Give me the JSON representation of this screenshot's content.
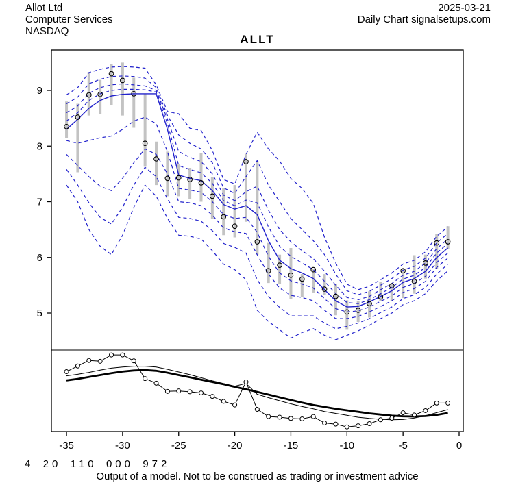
{
  "header": {
    "company": "Allot Ltd",
    "sector": "Computer Services",
    "exchange": "NASDAQ",
    "date": "2025-03-21",
    "source": "Daily Chart signalsetups.com",
    "title": "ALLT"
  },
  "footer": {
    "model_code": "4_20_110_000_972",
    "disclaimer": "Output of a model. Not to be construed as trading or investment advice"
  },
  "chart_data": {
    "type": "line",
    "title": "ALLT",
    "xlabel": "",
    "ylabel": "",
    "x": [
      -35,
      -34,
      -33,
      -32,
      -31,
      -30,
      -29,
      -28,
      -27,
      -26,
      -25,
      -24,
      -23,
      -22,
      -21,
      -20,
      -19,
      -18,
      -17,
      -16,
      -15,
      -14,
      -13,
      -12,
      -11,
      -10,
      -9,
      -8,
      -7,
      -6,
      -5,
      -4,
      -3,
      -2,
      -1
    ],
    "x_ticks": [
      -35,
      -30,
      -25,
      -20,
      -15,
      -10,
      -5,
      0
    ],
    "y_ticks": [
      5,
      6,
      7,
      8,
      9
    ],
    "ylim": [
      4.35,
      9.72
    ],
    "xlim": [
      -36.3,
      0.4
    ],
    "grid": false,
    "legend": "none",
    "series": {
      "close": [
        8.35,
        8.52,
        8.92,
        8.93,
        9.3,
        9.18,
        8.94,
        8.05,
        7.77,
        7.42,
        7.43,
        7.4,
        7.34,
        7.1,
        6.73,
        6.56,
        7.72,
        6.28,
        5.76,
        5.86,
        5.68,
        5.61,
        5.78,
        5.43,
        5.3,
        5.02,
        5.05,
        5.17,
        5.29,
        5.49,
        5.76,
        5.57,
        5.9,
        6.26,
        6.28
      ],
      "high": [
        8.8,
        8.76,
        9.33,
        9.19,
        9.48,
        9.5,
        9.23,
        8.94,
        8.08,
        7.9,
        7.67,
        7.61,
        7.88,
        7.45,
        7.24,
        7.3,
        7.86,
        7.73,
        6.26,
        6.05,
        6.17,
        5.7,
        5.8,
        5.7,
        5.52,
        5.23,
        5.21,
        5.39,
        5.56,
        5.52,
        5.8,
        6.04,
        6.05,
        6.42,
        6.56
      ],
      "low": [
        8.14,
        7.53,
        8.55,
        8.58,
        8.74,
        8.55,
        8.33,
        7.63,
        7.3,
        7.1,
        7.1,
        7.05,
        7.0,
        6.69,
        6.4,
        6.36,
        6.64,
        6.05,
        5.54,
        5.52,
        5.25,
        5.29,
        5.37,
        5.32,
        4.96,
        4.7,
        4.84,
        4.92,
        5.21,
        5.21,
        5.27,
        5.35,
        5.62,
        5.8,
        6.15
      ],
      "median": [
        8.3,
        8.48,
        8.68,
        8.82,
        8.9,
        8.93,
        8.94,
        8.94,
        8.94,
        8.3,
        7.48,
        7.42,
        7.38,
        7.2,
        6.95,
        6.87,
        6.93,
        6.77,
        6.3,
        5.95,
        5.8,
        5.72,
        5.62,
        5.42,
        5.22,
        5.11,
        5.12,
        5.2,
        5.3,
        5.4,
        5.55,
        5.62,
        5.75,
        6.0,
        6.17
      ],
      "q90": [
        8.92,
        9.05,
        9.32,
        9.38,
        9.42,
        9.43,
        9.42,
        9.4,
        9.1,
        8.62,
        8.58,
        8.32,
        8.28,
        7.92,
        7.4,
        7.32,
        7.85,
        8.25,
        7.95,
        7.73,
        7.42,
        7.24,
        6.97,
        6.36,
        5.9,
        5.52,
        5.42,
        5.48,
        5.6,
        5.72,
        5.88,
        5.95,
        6.1,
        6.38,
        6.55
      ],
      "q80": [
        8.76,
        8.88,
        9.12,
        9.2,
        9.25,
        9.26,
        9.25,
        9.22,
        9.05,
        8.55,
        8.2,
        8.05,
        7.95,
        7.7,
        7.25,
        7.15,
        7.45,
        7.74,
        7.3,
        7.0,
        6.7,
        6.5,
        6.3,
        6.05,
        5.7,
        5.4,
        5.33,
        5.39,
        5.5,
        5.62,
        5.77,
        5.84,
        5.99,
        6.26,
        6.43
      ],
      "q70": [
        8.6,
        8.72,
        8.95,
        9.05,
        9.1,
        9.12,
        9.1,
        9.08,
        9.0,
        8.48,
        7.9,
        7.8,
        7.72,
        7.5,
        7.12,
        7.02,
        7.18,
        7.28,
        6.85,
        6.5,
        6.28,
        6.12,
        5.98,
        5.75,
        5.5,
        5.28,
        5.24,
        5.3,
        5.42,
        5.53,
        5.68,
        5.75,
        5.9,
        6.16,
        6.33
      ],
      "q60": [
        8.45,
        8.6,
        8.82,
        8.94,
        9.0,
        9.02,
        9.02,
        9.01,
        8.97,
        8.4,
        7.65,
        7.58,
        7.52,
        7.33,
        7.02,
        6.93,
        7.03,
        6.98,
        6.55,
        6.2,
        6.02,
        5.9,
        5.78,
        5.57,
        5.35,
        5.19,
        5.17,
        5.24,
        5.35,
        5.46,
        5.61,
        5.68,
        5.82,
        6.08,
        6.25
      ],
      "q40": [
        8.1,
        8.05,
        8.1,
        8.15,
        8.18,
        8.3,
        8.45,
        8.52,
        8.4,
        7.9,
        7.24,
        7.21,
        7.17,
        7.0,
        6.77,
        6.7,
        6.72,
        6.45,
        6.02,
        5.72,
        5.58,
        5.52,
        5.45,
        5.26,
        5.08,
        5.02,
        5.04,
        5.11,
        5.21,
        5.31,
        5.46,
        5.53,
        5.66,
        5.91,
        6.08
      ],
      "q30": [
        7.85,
        7.65,
        7.45,
        7.28,
        7.2,
        7.42,
        7.7,
        7.95,
        7.85,
        7.5,
        7.0,
        6.98,
        6.93,
        6.76,
        6.53,
        6.46,
        6.43,
        6.05,
        5.7,
        5.45,
        5.32,
        5.28,
        5.22,
        5.05,
        4.9,
        4.9,
        4.94,
        5.02,
        5.12,
        5.22,
        5.37,
        5.44,
        5.57,
        5.82,
        5.99
      ],
      "q20": [
        7.58,
        7.3,
        6.98,
        6.72,
        6.6,
        6.9,
        7.3,
        7.62,
        7.45,
        7.05,
        6.72,
        6.7,
        6.65,
        6.48,
        6.25,
        6.18,
        6.08,
        5.6,
        5.3,
        5.1,
        4.95,
        4.95,
        4.95,
        4.82,
        4.72,
        4.76,
        4.82,
        4.9,
        5.01,
        5.11,
        5.26,
        5.33,
        5.46,
        5.7,
        5.88
      ],
      "q10": [
        7.3,
        7.0,
        6.5,
        6.2,
        6.05,
        6.4,
        6.9,
        7.3,
        7.1,
        6.7,
        6.4,
        6.38,
        6.33,
        6.12,
        5.88,
        5.78,
        5.6,
        5.05,
        4.85,
        4.7,
        4.55,
        4.65,
        4.72,
        4.6,
        4.52,
        4.6,
        4.68,
        4.78,
        4.9,
        5.0,
        5.15,
        5.22,
        5.35,
        5.58,
        5.76
      ]
    },
    "lower_panel": {
      "range": [
        0,
        1
      ],
      "oscillator": [
        0.754,
        0.828,
        0.9,
        0.89,
        0.972,
        0.972,
        0.895,
        0.664,
        0.604,
        0.497,
        0.503,
        0.492,
        0.477,
        0.432,
        0.367,
        0.32,
        0.62,
        0.263,
        0.169,
        0.161,
        0.144,
        0.138,
        0.169,
        0.085,
        0.07,
        0.034,
        0.048,
        0.076,
        0.127,
        0.147,
        0.218,
        0.189,
        0.246,
        0.345,
        0.345
      ],
      "signal_thin": [
        0.7,
        0.72,
        0.745,
        0.775,
        0.8,
        0.815,
        0.825,
        0.825,
        0.815,
        0.785,
        0.75,
        0.715,
        0.675,
        0.635,
        0.6,
        0.565,
        0.6,
        0.46,
        0.415,
        0.375,
        0.335,
        0.3,
        0.27,
        0.235,
        0.21,
        0.185,
        0.16,
        0.145,
        0.133,
        0.128,
        0.13,
        0.15,
        0.18,
        0.22,
        0.26
      ],
      "signal_thick": [
        0.64,
        0.66,
        0.685,
        0.71,
        0.735,
        0.755,
        0.77,
        0.775,
        0.765,
        0.74,
        0.71,
        0.68,
        0.65,
        0.62,
        0.59,
        0.555,
        0.525,
        0.49,
        0.455,
        0.42,
        0.385,
        0.35,
        0.32,
        0.295,
        0.27,
        0.25,
        0.23,
        0.21,
        0.195,
        0.18,
        0.172,
        0.17,
        0.175,
        0.19,
        0.215
      ]
    },
    "colors": {
      "forecast_blue": "#2121cc",
      "bar_gray": "#c3c3c3",
      "marker_black": "#000000",
      "axis_black": "#000000",
      "background": "#ffffff"
    }
  }
}
